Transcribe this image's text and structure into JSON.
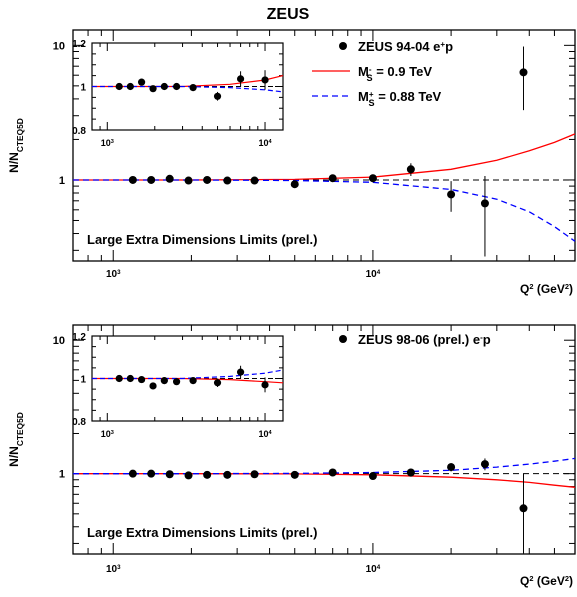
{
  "title": "ZEUS",
  "colors": {
    "data": "#000000",
    "minus_curve": "#ff0000",
    "plus_curve": "#0000ff",
    "reference": "#000000"
  },
  "chart_data": [
    {
      "type": "scatter",
      "panel": "top",
      "ylabel": {
        "main": "N/N",
        "sub": "CTEQ5D"
      },
      "xlabel": {
        "main": "Q",
        "sup": "2",
        "unit_open": "  (GeV",
        "unit_sup": "2",
        "unit_close": ")"
      },
      "xscale": "log",
      "yscale": "log",
      "xlim": [
        700,
        60000
      ],
      "ylim": [
        0.25,
        13
      ],
      "x_ticks": [
        {
          "value": 1000,
          "base": "10",
          "exp": "3"
        },
        {
          "value": 10000,
          "base": "10",
          "exp": "4"
        }
      ],
      "y_ticks": [
        {
          "value": 1,
          "label": "1"
        },
        {
          "value": 10,
          "label": "10"
        }
      ],
      "annotation": "Large Extra Dimensions Limits (prel.)",
      "series": [
        {
          "name": "ZEUS 94-04 e+p",
          "legend": {
            "text": "ZEUS 94-04 e",
            "sup": "+",
            "tail": "p"
          },
          "kind": "points",
          "x": [
            1190,
            1400,
            1650,
            1950,
            2300,
            2750,
            3500,
            5000,
            7000,
            10000,
            14000,
            20000,
            27000,
            38000
          ],
          "y": [
            1.0,
            1.0,
            1.02,
            0.99,
            1.0,
            0.99,
            0.99,
            0.93,
            1.03,
            1.03,
            1.2,
            0.78,
            0.67,
            6.3
          ],
          "yerr_lo": [
            0.02,
            0.02,
            0.02,
            0.02,
            0.03,
            0.03,
            0.03,
            0.04,
            0.06,
            0.07,
            0.13,
            0.2,
            0.4,
            3.0
          ],
          "yerr_hi": [
            0.02,
            0.02,
            0.02,
            0.02,
            0.03,
            0.03,
            0.03,
            0.04,
            0.06,
            0.07,
            0.13,
            0.2,
            0.4,
            3.5
          ]
        },
        {
          "name": "M_S^- = 0.9 TeV",
          "legend": {
            "text": "M",
            "sup": "-",
            "sub": "S",
            "tail": " = 0.9 TeV"
          },
          "kind": "line",
          "x": [
            700,
            2000,
            5000,
            10000,
            20000,
            30000,
            40000,
            50000,
            60000
          ],
          "y": [
            1.0,
            1.0,
            1.01,
            1.05,
            1.2,
            1.4,
            1.65,
            1.9,
            2.2
          ]
        },
        {
          "name": "M_S^+ = 0.88 TeV",
          "legend": {
            "text": "M",
            "sup": "+",
            "sub": "S",
            "tail": " = 0.88 TeV"
          },
          "kind": "dashed",
          "x": [
            700,
            2000,
            5000,
            10000,
            20000,
            30000,
            40000,
            50000,
            60000
          ],
          "y": [
            1.0,
            1.0,
            0.99,
            0.96,
            0.85,
            0.72,
            0.58,
            0.45,
            0.35
          ]
        }
      ],
      "inset": {
        "xlim": [
          800,
          13000
        ],
        "ylim": [
          0.8,
          1.2
        ],
        "x_ticks": [
          {
            "value": 1000,
            "base": "10",
            "exp": "3"
          },
          {
            "value": 10000,
            "base": "10",
            "exp": "4"
          }
        ],
        "y_ticks": [
          {
            "value": 0.8,
            "label": "0.8"
          },
          {
            "value": 1.0,
            "label": "1"
          },
          {
            "value": 1.2,
            "label": "1.2"
          }
        ],
        "points": {
          "x": [
            1190,
            1400,
            1650,
            1950,
            2300,
            2750,
            3500,
            5000,
            7000,
            10000
          ],
          "y": [
            1.0,
            1.0,
            1.02,
            0.99,
            1.0,
            1.0,
            0.995,
            0.955,
            1.035,
            1.03
          ],
          "err": [
            0.01,
            0.01,
            0.01,
            0.01,
            0.015,
            0.015,
            0.015,
            0.02,
            0.035,
            0.045
          ]
        },
        "minus_curve": {
          "x": [
            800,
            3000,
            6000,
            10000,
            13000
          ],
          "y": [
            1.0,
            1.0,
            1.01,
            1.03,
            1.05
          ]
        },
        "plus_curve": {
          "x": [
            800,
            3000,
            6000,
            10000,
            13000
          ],
          "y": [
            1.0,
            1.0,
            0.995,
            0.985,
            0.975
          ]
        }
      }
    },
    {
      "type": "scatter",
      "panel": "bottom",
      "ylabel": {
        "main": "N/N",
        "sub": "CTEQ5D"
      },
      "xlabel": {
        "main": "Q",
        "sup": "2",
        "unit_open": "  (GeV",
        "unit_sup": "2",
        "unit_close": ")"
      },
      "xscale": "log",
      "yscale": "log",
      "xlim": [
        700,
        60000
      ],
      "ylim": [
        0.25,
        13
      ],
      "x_ticks": [
        {
          "value": 1000,
          "base": "10",
          "exp": "3"
        },
        {
          "value": 10000,
          "base": "10",
          "exp": "4"
        }
      ],
      "y_ticks": [
        {
          "value": 1,
          "label": "1"
        },
        {
          "value": 10,
          "label": "10"
        }
      ],
      "annotation": "Large Extra Dimensions Limits (prel.)",
      "series": [
        {
          "name": "ZEUS 98-06 (prel.) e-p",
          "legend": {
            "text": "ZEUS 98-06 (prel.) e",
            "sup": "-",
            "tail": "p"
          },
          "kind": "points",
          "x": [
            1190,
            1400,
            1650,
            1950,
            2300,
            2750,
            3500,
            5000,
            7000,
            10000,
            14000,
            20000,
            27000,
            38000
          ],
          "y": [
            1.0,
            1.0,
            0.99,
            0.97,
            0.98,
            0.98,
            0.99,
            0.98,
            1.02,
            0.96,
            1.02,
            1.12,
            1.18,
            0.55
          ],
          "yerr_lo": [
            0.02,
            0.02,
            0.02,
            0.02,
            0.03,
            0.03,
            0.03,
            0.04,
            0.05,
            0.05,
            0.07,
            0.08,
            0.12,
            0.3
          ],
          "yerr_hi": [
            0.02,
            0.02,
            0.02,
            0.02,
            0.03,
            0.03,
            0.03,
            0.04,
            0.05,
            0.05,
            0.07,
            0.08,
            0.12,
            0.45
          ]
        },
        {
          "name": "minus_curve",
          "kind": "line",
          "x": [
            700,
            2000,
            5000,
            10000,
            20000,
            30000,
            40000,
            50000,
            60000
          ],
          "y": [
            1.0,
            1.0,
            0.995,
            0.98,
            0.94,
            0.9,
            0.86,
            0.82,
            0.79
          ]
        },
        {
          "name": "plus_curve",
          "kind": "dashed",
          "x": [
            700,
            2000,
            5000,
            10000,
            20000,
            30000,
            40000,
            50000,
            60000
          ],
          "y": [
            1.0,
            1.0,
            1.005,
            1.02,
            1.06,
            1.12,
            1.18,
            1.24,
            1.3
          ]
        }
      ],
      "inset": {
        "xlim": [
          800,
          13000
        ],
        "ylim": [
          0.8,
          1.2
        ],
        "x_ticks": [
          {
            "value": 1000,
            "base": "10",
            "exp": "3"
          },
          {
            "value": 10000,
            "base": "10",
            "exp": "4"
          }
        ],
        "y_ticks": [
          {
            "value": 0.8,
            "label": "0.8"
          },
          {
            "value": 1.0,
            "label": "1"
          },
          {
            "value": 1.2,
            "label": "1.2"
          }
        ],
        "points": {
          "x": [
            1190,
            1400,
            1650,
            1950,
            2300,
            2750,
            3500,
            5000,
            7000,
            10000
          ],
          "y": [
            1.0,
            1.0,
            0.995,
            0.965,
            0.99,
            0.985,
            0.99,
            0.98,
            1.03,
            0.97
          ],
          "err": [
            0.01,
            0.01,
            0.01,
            0.01,
            0.015,
            0.015,
            0.015,
            0.02,
            0.03,
            0.035
          ]
        },
        "minus_curve": {
          "x": [
            800,
            3000,
            6000,
            10000,
            13000
          ],
          "y": [
            1.0,
            1.0,
            0.995,
            0.985,
            0.98
          ]
        },
        "plus_curve": {
          "x": [
            800,
            3000,
            6000,
            10000,
            13000
          ],
          "y": [
            1.0,
            1.0,
            1.01,
            1.025,
            1.04
          ]
        }
      }
    }
  ]
}
